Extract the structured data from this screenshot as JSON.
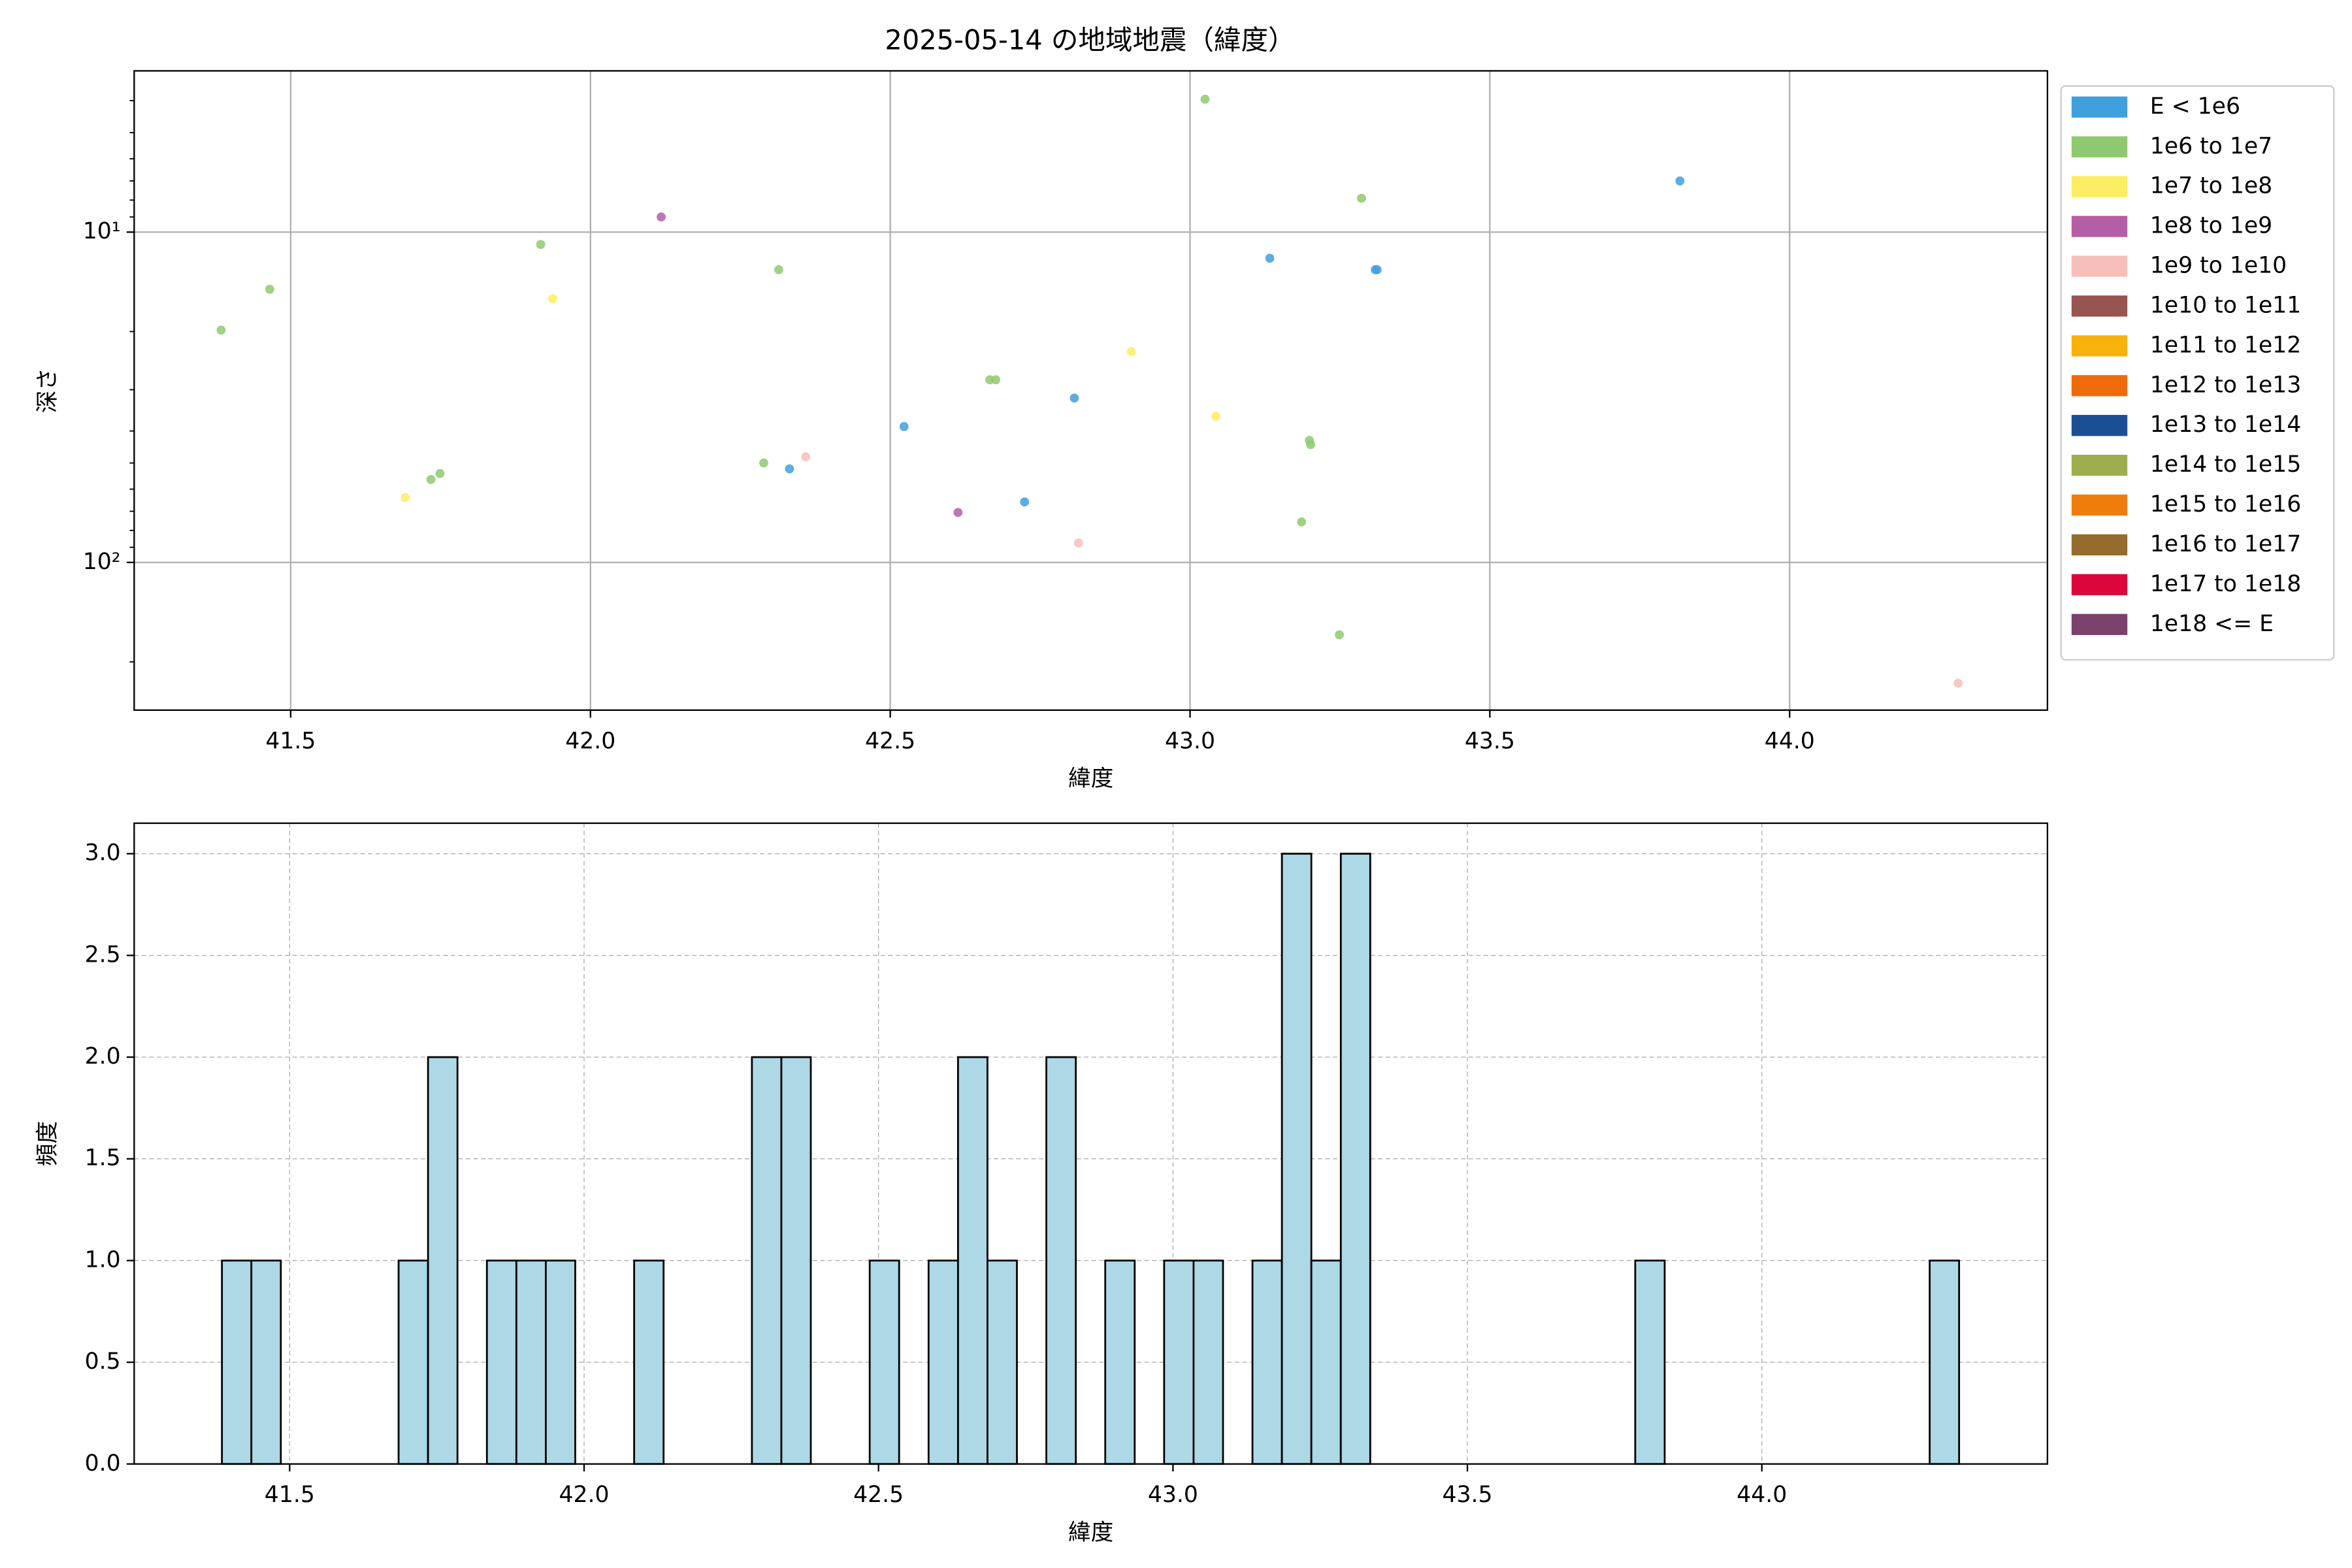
{
  "chart_data": [
    {
      "type": "scatter",
      "title": "2025-05-14 の地域地震（緯度）",
      "xlabel": "緯度",
      "ylabel": "深さ",
      "xlim": [
        41.239,
        44.43
      ],
      "ylim": [
        280,
        3.25
      ],
      "log_y": true,
      "xticks": [
        41.5,
        {
          "value": 42,
          "label": "42.0"
        },
        42.5,
        {
          "value": 43,
          "label": "43.0"
        },
        43.5,
        {
          "value": 44,
          "label": "44.0"
        }
      ],
      "yticks": [
        {
          "value": 10,
          "label": "10¹"
        },
        {
          "value": 100,
          "label": "10²"
        }
      ],
      "yminorticks": [
        4,
        5,
        6,
        7,
        8,
        9,
        20,
        30,
        40,
        50,
        60,
        70,
        80,
        90,
        200
      ],
      "grid": true,
      "grid_style": "solid",
      "legend": "outside upper right",
      "series": [
        {
          "name": "E < 1e6",
          "color": "#3fa0dc",
          "x": [
            42.332,
            42.523,
            42.724,
            42.807,
            43.133,
            43.309,
            43.312,
            43.817
          ],
          "values": [
            52.1,
            38.8,
            65.6,
            31.8,
            12.0,
            13.0,
            13.0,
            7.0
          ]
        },
        {
          "name": "1e6 to 1e7",
          "color": "#8fc96f",
          "x": [
            41.384,
            41.465,
            41.734,
            41.749,
            41.917,
            42.289,
            42.314,
            42.666,
            42.676,
            43.025,
            43.186,
            43.199,
            43.201,
            43.249,
            43.286
          ],
          "values": [
            19.8,
            14.9,
            56.1,
            53.8,
            10.9,
            50.0,
            13.0,
            28.0,
            28.0,
            3.96,
            75.4,
            42.7,
            44.0,
            165.6,
            7.9
          ]
        },
        {
          "name": "1e7 to 1e8",
          "color": "#fded62",
          "x": [
            41.691,
            41.937,
            42.902,
            43.043
          ],
          "values": [
            63.6,
            15.9,
            23.0,
            36.1
          ]
        },
        {
          "name": "1e8 to 1e9",
          "color": "#b55ea5",
          "x": [
            42.118,
            42.613
          ],
          "values": [
            9.0,
            70.6
          ]
        },
        {
          "name": "1e9 to 1e10",
          "color": "#f5c0ba",
          "x": [
            42.359,
            42.814,
            44.281
          ],
          "values": [
            47.9,
            87.3,
            232
          ]
        },
        {
          "name": "1e10 to 1e11",
          "color": "#985450",
          "x": [],
          "values": []
        },
        {
          "name": "1e11 to 1e12",
          "color": "#f7b30c",
          "x": [],
          "values": []
        },
        {
          "name": "1e12 to 1e13",
          "color": "#ef6a0b",
          "x": [],
          "values": []
        },
        {
          "name": "1e13 to 1e14",
          "color": "#1c4e95",
          "x": [],
          "values": []
        },
        {
          "name": "1e14 to 1e15",
          "color": "#9eae4f",
          "x": [],
          "values": []
        },
        {
          "name": "1e15 to 1e16",
          "color": "#ef7d0e",
          "x": [],
          "values": []
        },
        {
          "name": "1e16 to 1e17",
          "color": "#946c2e",
          "x": [],
          "values": []
        },
        {
          "name": "1e17 to 1e18",
          "color": "#dc053c",
          "x": [],
          "values": []
        },
        {
          "name": "1e18 <= E",
          "color": "#7a426d",
          "x": [],
          "values": []
        }
      ]
    },
    {
      "type": "histogram",
      "xlabel": "緯度",
      "ylabel": "頻度",
      "xlim": [
        41.236,
        44.485
      ],
      "ylim": [
        0,
        3.15
      ],
      "xticks": [
        41.5,
        {
          "value": 42,
          "label": "42.0"
        },
        42.5,
        {
          "value": 43,
          "label": "43.0"
        },
        43.5,
        {
          "value": 44,
          "label": "44.0"
        }
      ],
      "yticks": [
        {
          "value": 0,
          "label": "0.0"
        },
        0.5,
        {
          "value": 1,
          "label": "1.0"
        },
        1.5,
        {
          "value": 2,
          "label": "2.0"
        },
        2.5,
        {
          "value": 3,
          "label": "3.0"
        }
      ],
      "grid": true,
      "grid_style": "dashed",
      "color": "#add8e6",
      "edgecolor": "#000000",
      "bins": [
        41.385,
        41.435,
        41.485,
        41.535,
        41.585,
        41.635,
        41.685,
        41.735,
        41.785,
        41.835,
        41.885,
        41.935,
        41.985,
        42.035,
        42.085,
        42.135,
        42.185,
        42.235,
        42.285,
        42.335,
        42.385,
        42.435,
        42.485,
        42.535,
        42.585,
        42.635,
        42.685,
        42.735,
        42.785,
        42.835,
        42.885,
        42.935,
        42.985,
        43.035,
        43.085,
        43.135,
        43.185,
        43.235,
        43.285,
        43.335,
        43.385,
        43.435,
        43.485,
        43.535,
        43.585,
        43.635,
        43.685,
        43.735,
        43.785,
        43.835,
        43.885,
        43.935,
        43.985,
        44.035,
        44.085,
        44.135,
        44.185,
        44.235,
        44.285,
        44.335
      ],
      "values": [
        1,
        1,
        0,
        0,
        0,
        0,
        1,
        2,
        0,
        1,
        1,
        1,
        0,
        0,
        1,
        0,
        0,
        0,
        2,
        2,
        0,
        0,
        1,
        0,
        1,
        2,
        1,
        0,
        2,
        0,
        1,
        0,
        1,
        1,
        0,
        1,
        3,
        1,
        3,
        0,
        0,
        0,
        0,
        0,
        0,
        0,
        0,
        0,
        1,
        0,
        0,
        0,
        0,
        0,
        0,
        0,
        0,
        0,
        1
      ]
    }
  ]
}
